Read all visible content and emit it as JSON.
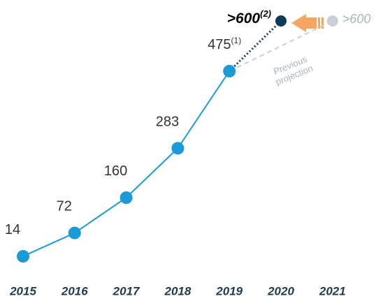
{
  "chart_data": {
    "type": "line",
    "categories": [
      "2015",
      "2016",
      "2017",
      "2018",
      "2019",
      "2020",
      "2021"
    ],
    "ylim": [
      0,
      640
    ],
    "series": [
      {
        "color": "#1a9ad6",
        "style": "solid",
        "values": [
          14,
          72,
          160,
          283,
          475,
          null,
          null
        ],
        "footnotes": [
          null,
          null,
          null,
          null,
          "(1)",
          null,
          null
        ]
      },
      {
        "color": "#0d3b55",
        "style": "dotted",
        "values": [
          null,
          null,
          null,
          null,
          475,
          600,
          null
        ],
        "value_labels": [
          null,
          null,
          null,
          null,
          null,
          ">600",
          null
        ],
        "footnotes": [
          null,
          null,
          null,
          null,
          null,
          "(2)",
          null
        ]
      },
      {
        "name": "Previous projection",
        "color": "#c9cfd5",
        "style": "dashed",
        "values": [
          null,
          null,
          null,
          null,
          475,
          null,
          600
        ],
        "value_labels": [
          null,
          null,
          null,
          null,
          null,
          null,
          ">600"
        ]
      }
    ]
  }
}
